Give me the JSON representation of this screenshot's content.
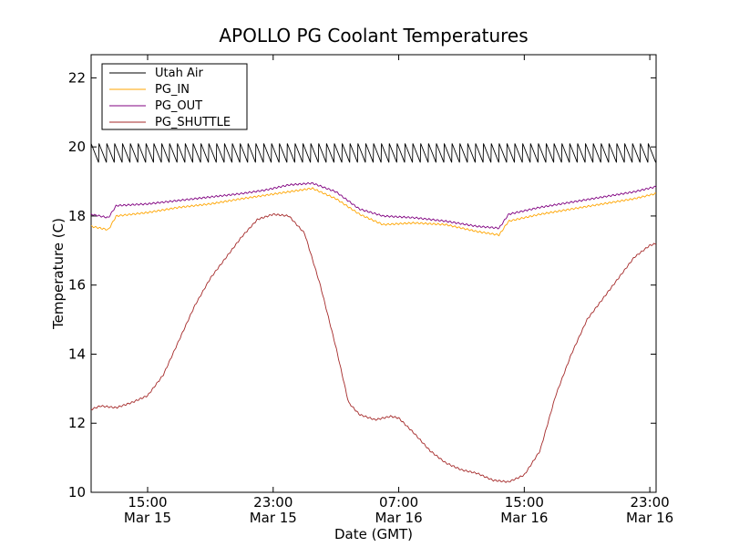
{
  "chart_data": {
    "type": "line",
    "title": "APOLLO PG Coolant Temperatures",
    "xlabel": "Date (GMT)",
    "ylabel": "Temperature (C)",
    "ylim": [
      10,
      22.67
    ],
    "xlim_hours": [
      11.4,
      47.4
    ],
    "yticks": [
      10,
      12,
      14,
      16,
      18,
      20,
      22
    ],
    "xticks": [
      {
        "hour": 15,
        "time": "15:00",
        "date": "Mar 15"
      },
      {
        "hour": 23,
        "time": "23:00",
        "date": "Mar 15"
      },
      {
        "hour": 31,
        "time": "07:00",
        "date": "Mar 16"
      },
      {
        "hour": 39,
        "time": "15:00",
        "date": "Mar 16"
      },
      {
        "hour": 47,
        "time": "23:00",
        "date": "Mar 16"
      }
    ],
    "legend_position": "top-left",
    "series": [
      {
        "name": "Utah Air",
        "color": "#000000",
        "style": "sawtooth",
        "cycle_hours": 0.5,
        "low_values": [
          [
            11.4,
            19.55
          ],
          [
            23,
            19.55
          ],
          [
            47.4,
            19.55
          ]
        ],
        "high_values": [
          [
            11.4,
            20.1
          ],
          [
            23,
            20.1
          ],
          [
            47.4,
            20.1
          ]
        ]
      },
      {
        "name": "PG_IN",
        "color": "#ffa500",
        "style": "line",
        "points": [
          [
            11.4,
            17.7
          ],
          [
            12.5,
            17.6
          ],
          [
            13,
            18.0
          ],
          [
            15,
            18.1
          ],
          [
            17,
            18.25
          ],
          [
            19,
            18.35
          ],
          [
            21,
            18.5
          ],
          [
            22.5,
            18.6
          ],
          [
            24,
            18.7
          ],
          [
            25.5,
            18.8
          ],
          [
            27,
            18.5
          ],
          [
            28.5,
            18.05
          ],
          [
            30,
            17.75
          ],
          [
            32,
            17.8
          ],
          [
            34,
            17.75
          ],
          [
            36,
            17.55
          ],
          [
            37.4,
            17.45
          ],
          [
            38,
            17.85
          ],
          [
            40,
            18.05
          ],
          [
            42,
            18.2
          ],
          [
            44,
            18.35
          ],
          [
            46,
            18.5
          ],
          [
            47.4,
            18.65
          ]
        ]
      },
      {
        "name": "PG_OUT",
        "color": "#800080",
        "style": "line",
        "points": [
          [
            11.4,
            18.05
          ],
          [
            12.5,
            17.95
          ],
          [
            13,
            18.3
          ],
          [
            15,
            18.35
          ],
          [
            17,
            18.45
          ],
          [
            19,
            18.55
          ],
          [
            21,
            18.65
          ],
          [
            22.5,
            18.75
          ],
          [
            24,
            18.9
          ],
          [
            25.5,
            18.95
          ],
          [
            27,
            18.7
          ],
          [
            28.5,
            18.2
          ],
          [
            30,
            18.0
          ],
          [
            32,
            17.95
          ],
          [
            34,
            17.85
          ],
          [
            36,
            17.7
          ],
          [
            37.4,
            17.65
          ],
          [
            38,
            18.05
          ],
          [
            40,
            18.25
          ],
          [
            42,
            18.4
          ],
          [
            44,
            18.55
          ],
          [
            46,
            18.7
          ],
          [
            47.4,
            18.85
          ]
        ]
      },
      {
        "name": "PG_SHUTTLE",
        "color": "#a52a2a",
        "style": "line",
        "points": [
          [
            11.4,
            12.4
          ],
          [
            12,
            12.5
          ],
          [
            13,
            12.45
          ],
          [
            14,
            12.6
          ],
          [
            15,
            12.8
          ],
          [
            16,
            13.4
          ],
          [
            17,
            14.4
          ],
          [
            18,
            15.4
          ],
          [
            19,
            16.2
          ],
          [
            20,
            16.8
          ],
          [
            21,
            17.4
          ],
          [
            22,
            17.9
          ],
          [
            23,
            18.05
          ],
          [
            24,
            18.0
          ],
          [
            25,
            17.5
          ],
          [
            26,
            16.0
          ],
          [
            27,
            14.2
          ],
          [
            27.8,
            12.6
          ],
          [
            28.5,
            12.25
          ],
          [
            29.5,
            12.1
          ],
          [
            30.5,
            12.2
          ],
          [
            31,
            12.15
          ],
          [
            32,
            11.7
          ],
          [
            33,
            11.2
          ],
          [
            34,
            10.85
          ],
          [
            35,
            10.65
          ],
          [
            36,
            10.55
          ],
          [
            37,
            10.35
          ],
          [
            38,
            10.3
          ],
          [
            39,
            10.5
          ],
          [
            40,
            11.2
          ],
          [
            41,
            12.8
          ],
          [
            42,
            14.0
          ],
          [
            43,
            15.0
          ],
          [
            44,
            15.6
          ],
          [
            45,
            16.2
          ],
          [
            46,
            16.8
          ],
          [
            47,
            17.15
          ],
          [
            47.4,
            17.2
          ]
        ]
      }
    ]
  }
}
